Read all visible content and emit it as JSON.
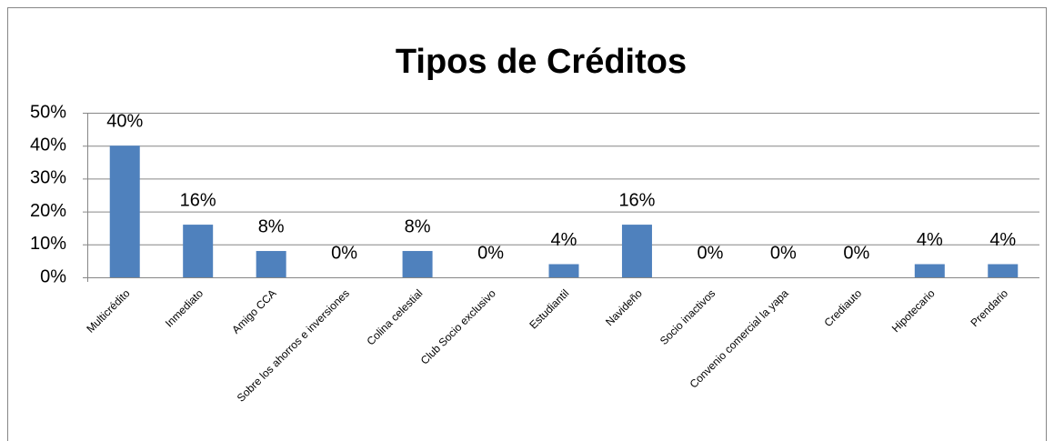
{
  "chart_data": {
    "type": "bar",
    "title": "Tipos de Créditos",
    "categories": [
      "Multicrédito",
      "Inmediato",
      "Amigo CCA",
      "Sobre los ahorros e inversiones",
      "Colina celestial",
      "Club Socio exclusivo",
      "Estudiantil",
      "Navideño",
      "Socio inactivos",
      "Convenio comercial la yapa",
      "Crediauto",
      "Hipotecario",
      "Prendario"
    ],
    "values": [
      40,
      16,
      8,
      0,
      8,
      0,
      4,
      16,
      0,
      0,
      0,
      4,
      4
    ],
    "value_labels": [
      "40%",
      "16%",
      "8%",
      "0%",
      "8%",
      "0%",
      "4%",
      "16%",
      "0%",
      "0%",
      "0%",
      "4%",
      "4%"
    ],
    "color": "#4f81bd",
    "ylim": [
      0,
      50
    ],
    "yticks": [
      {
        "value": 0,
        "label": "0%"
      },
      {
        "value": 10,
        "label": "10%"
      },
      {
        "value": 20,
        "label": "20%"
      },
      {
        "value": 30,
        "label": "30%"
      },
      {
        "value": 40,
        "label": "40%"
      },
      {
        "value": 50,
        "label": "50%"
      }
    ],
    "grid": true
  }
}
